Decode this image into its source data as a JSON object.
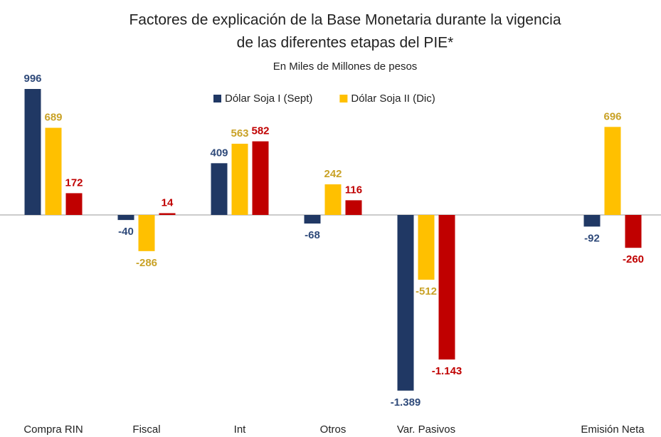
{
  "chart_data": {
    "type": "bar",
    "title": [
      "Factores de explicación de la Base Monetaria durante la vigencia",
      "de las diferentes etapas del PIE*"
    ],
    "subtitle": "En Miles de Millones de pesos",
    "categories": [
      "Compra RIN",
      "Fiscal",
      "Int",
      "Otros",
      "Var. Pasivos",
      null,
      "Emisión Neta"
    ],
    "series": [
      {
        "name": "Dólar Soja I (Sept)",
        "color": "#203864",
        "label_color": "#2f4a7a",
        "values": [
          996,
          -40,
          409,
          -68,
          -1389,
          null,
          -92
        ],
        "value_labels": [
          "996",
          "-40",
          "409",
          "-68",
          "-1.389",
          null,
          "-92"
        ]
      },
      {
        "name": "Dólar Soja II (Dic)",
        "color": "#ffc000",
        "label_color": "#c9a227",
        "values": [
          689,
          -286,
          563,
          242,
          -512,
          null,
          696
        ],
        "value_labels": [
          "689",
          "-286",
          "563",
          "242",
          "-512",
          null,
          "696"
        ]
      },
      {
        "color": "#c00000",
        "label_color": "#c00000",
        "values": [
          172,
          14,
          582,
          116,
          -1143,
          null,
          -260
        ],
        "value_labels": [
          "172",
          "14",
          "582",
          "116",
          "-1.143",
          null,
          "-260"
        ]
      }
    ]
  }
}
